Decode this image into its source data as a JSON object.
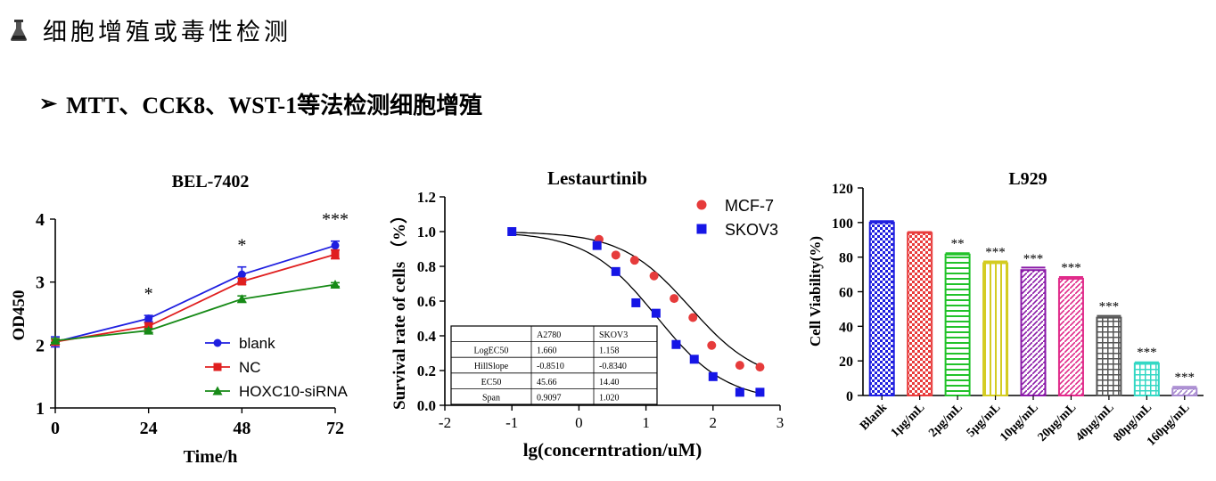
{
  "header": {
    "title": "细胞增殖或毒性检测",
    "icon": "flask-icon"
  },
  "subtitle": {
    "arrow": "➢",
    "text": "MTT、CCK8、WST-1等法检测细胞增殖"
  },
  "chart_data": [
    {
      "type": "line",
      "title": "BEL-7402",
      "xlabel": "Time/h",
      "ylabel": "OD450",
      "x": [
        0,
        24,
        48,
        72
      ],
      "xlim": [
        0,
        72
      ],
      "ylim": [
        1,
        4
      ],
      "xticks": [
        "0",
        "24",
        "48",
        "72"
      ],
      "yticks": [
        "1",
        "2",
        "3",
        "4"
      ],
      "series": [
        {
          "name": "blank",
          "values": [
            2.05,
            2.42,
            3.12,
            3.58
          ],
          "err": [
            0.08,
            0.05,
            0.12,
            0.07
          ],
          "color": "#1f1fe0",
          "marker": "circle"
        },
        {
          "name": "NC",
          "values": [
            2.05,
            2.3,
            3.01,
            3.44
          ],
          "err": [
            0.05,
            0.05,
            0.05,
            0.07
          ],
          "color": "#e01f1f",
          "marker": "square"
        },
        {
          "name": "HOXC10-siRNA",
          "values": [
            2.07,
            2.23,
            2.73,
            2.96
          ],
          "err": [
            0.03,
            0.03,
            0.05,
            0.03
          ],
          "color": "#178a17",
          "marker": "triangle"
        }
      ],
      "annotations": [
        {
          "x": 24,
          "text": "*"
        },
        {
          "x": 48,
          "text": "*"
        },
        {
          "x": 72,
          "text": "***"
        }
      ]
    },
    {
      "type": "scatter",
      "title": "Lestaurtinib",
      "xlabel": "lg(concerntration/uM)",
      "ylabel": "Survival rate of cells （%）",
      "xlim": [
        -2,
        3
      ],
      "ylim": [
        0,
        1.2
      ],
      "xticks": [
        "-2",
        "-1",
        "0",
        "1",
        "2",
        "3"
      ],
      "yticks": [
        "0.0",
        "0.2",
        "0.4",
        "0.6",
        "0.8",
        "1.0",
        "1.2"
      ],
      "series": [
        {
          "name": "MCF-7",
          "color": "#e63b3b",
          "marker": "circle",
          "x": [
            0.3,
            0.55,
            0.83,
            1.12,
            1.42,
            1.7,
            1.98,
            2.4,
            2.7
          ],
          "y": [
            0.955,
            0.865,
            0.835,
            0.745,
            0.615,
            0.505,
            0.345,
            0.23,
            0.22
          ]
        },
        {
          "name": "SKOV3",
          "color": "#1616e6",
          "marker": "square",
          "x": [
            -1,
            0.27,
            0.55,
            0.85,
            1.15,
            1.45,
            1.72,
            2,
            2.4,
            2.7
          ],
          "y": [
            1.0,
            0.92,
            0.77,
            0.59,
            0.53,
            0.35,
            0.265,
            0.165,
            0.075,
            0.075
          ]
        }
      ],
      "table": {
        "headers": [
          "",
          "A2780",
          "SKOV3"
        ],
        "rows": [
          [
            "LogEC50",
            "1.660",
            "1.158"
          ],
          [
            "HillSlope",
            "-0.8510",
            "-0.8340"
          ],
          [
            "EC50",
            "45.66",
            "14.40"
          ],
          [
            "Span",
            "0.9097",
            "1.020"
          ]
        ]
      }
    },
    {
      "type": "bar",
      "title": "L929",
      "ylabel": "Cell Viability(%)",
      "ylim": [
        0,
        120
      ],
      "yticks": [
        "0",
        "20",
        "40",
        "60",
        "80",
        "100",
        "120"
      ],
      "categories": [
        "Blank",
        "1μg/mL",
        "2μg/mL",
        "5μg/mL",
        "10μg/mL",
        "20μg/mL",
        "40μg/mL",
        "80μg/mL",
        "160μg/mL"
      ],
      "values": [
        100,
        94,
        81.5,
        76.5,
        72.5,
        67.5,
        45,
        18.5,
        4
      ],
      "err": [
        0.8,
        0.5,
        0.8,
        1.0,
        1.5,
        1.0,
        1.0,
        0.7,
        1.0
      ],
      "colors": [
        "#2020e0",
        "#e83c3c",
        "#22c22a",
        "#d4cc22",
        "#8a1aa8",
        "#e02a8a",
        "#555555",
        "#34d8c4",
        "#a88ad0"
      ],
      "patterns": [
        "check",
        "check",
        "hline",
        "vline",
        "diag",
        "diag",
        "grid",
        "grid",
        "diag"
      ],
      "annotations": [
        "",
        "",
        "**",
        "***",
        "***",
        "***",
        "***",
        "***",
        "***"
      ]
    }
  ]
}
